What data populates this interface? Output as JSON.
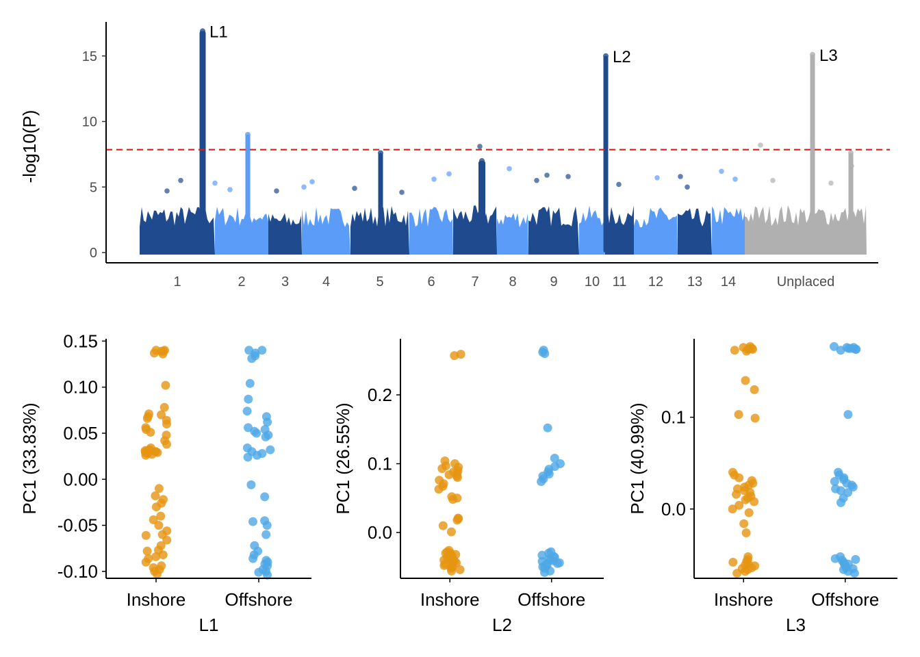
{
  "colors": {
    "dark_blue": "#1f4b8e",
    "light_blue": "#5b9cf8",
    "grey": "#b0b0b0",
    "threshold": "#e31a1c",
    "inshore": "#e69512",
    "offshore": "#4ea8e6"
  },
  "chart_data": [
    {
      "type": "scatter",
      "subtype": "manhattan",
      "ylabel": "-log10(P)",
      "xlabel": "",
      "ylim": [
        0,
        17.5
      ],
      "yticks": [
        "0",
        "5",
        "10",
        "15"
      ],
      "threshold": 7.85,
      "chromosomes": [
        {
          "name": "1",
          "start": 0,
          "end": 110,
          "color": "dark_blue",
          "base_max": 3.6
        },
        {
          "name": "2",
          "start": 110,
          "end": 188,
          "color": "light_blue",
          "base_max": 3.6
        },
        {
          "name": "3",
          "start": 188,
          "end": 237,
          "color": "dark_blue",
          "base_max": 3.1
        },
        {
          "name": "4",
          "start": 237,
          "end": 308,
          "color": "light_blue",
          "base_max": 3.5
        },
        {
          "name": "5",
          "start": 308,
          "end": 394,
          "color": "dark_blue",
          "base_max": 3.6
        },
        {
          "name": "6",
          "start": 394,
          "end": 458,
          "color": "light_blue",
          "base_max": 3.5
        },
        {
          "name": "7",
          "start": 458,
          "end": 522,
          "color": "dark_blue",
          "base_max": 3.6
        },
        {
          "name": "8",
          "start": 522,
          "end": 568,
          "color": "light_blue",
          "base_max": 3.4
        },
        {
          "name": "9",
          "start": 568,
          "end": 642,
          "color": "dark_blue",
          "base_max": 3.6
        },
        {
          "name": "10",
          "start": 642,
          "end": 680,
          "color": "light_blue",
          "base_max": 3.6
        },
        {
          "name": "11",
          "start": 680,
          "end": 722,
          "color": "dark_blue",
          "base_max": 3.6
        },
        {
          "name": "12",
          "start": 722,
          "end": 786,
          "color": "light_blue",
          "base_max": 3.5
        },
        {
          "name": "13",
          "start": 786,
          "end": 836,
          "color": "dark_blue",
          "base_max": 3.4
        },
        {
          "name": "14",
          "start": 836,
          "end": 884,
          "color": "light_blue",
          "base_max": 3.6
        },
        {
          "name": "Unplaced",
          "start": 884,
          "end": 1062,
          "color": "grey",
          "base_max": 3.7
        }
      ],
      "peaks": [
        {
          "x": 92,
          "height": 16.9,
          "color": "dark_blue",
          "width": 5,
          "label": "L1"
        },
        {
          "x": 158,
          "height": 9.0,
          "color": "light_blue",
          "width": 3,
          "label": ""
        },
        {
          "x": 352,
          "height": 7.6,
          "color": "dark_blue",
          "width": 3,
          "label": ""
        },
        {
          "x": 500,
          "height": 7.0,
          "color": "dark_blue",
          "width": 6,
          "label": ""
        },
        {
          "x": 681,
          "height": 15.0,
          "color": "dark_blue",
          "width": 3,
          "label": "L2"
        },
        {
          "x": 983,
          "height": 15.1,
          "color": "grey",
          "width": 3,
          "label": "L3"
        },
        {
          "x": 1039,
          "height": 7.6,
          "color": "grey",
          "width": 3,
          "label": ""
        }
      ],
      "outliers": [
        {
          "x": 40,
          "y": 4.7
        },
        {
          "x": 60,
          "y": 5.5
        },
        {
          "x": 110,
          "y": 5.3
        },
        {
          "x": 132,
          "y": 4.8
        },
        {
          "x": 200,
          "y": 4.7
        },
        {
          "x": 240,
          "y": 5.0
        },
        {
          "x": 252,
          "y": 5.4
        },
        {
          "x": 314,
          "y": 4.9
        },
        {
          "x": 383,
          "y": 4.6
        },
        {
          "x": 430,
          "y": 5.6
        },
        {
          "x": 452,
          "y": 6.0
        },
        {
          "x": 497,
          "y": 8.1
        },
        {
          "x": 540,
          "y": 6.4
        },
        {
          "x": 580,
          "y": 5.5
        },
        {
          "x": 595,
          "y": 5.9
        },
        {
          "x": 626,
          "y": 5.8
        },
        {
          "x": 700,
          "y": 5.2
        },
        {
          "x": 756,
          "y": 5.7
        },
        {
          "x": 790,
          "y": 5.8
        },
        {
          "x": 800,
          "y": 5.0
        },
        {
          "x": 850,
          "y": 6.2
        },
        {
          "x": 870,
          "y": 5.6
        },
        {
          "x": 907,
          "y": 8.2
        },
        {
          "x": 925,
          "y": 5.5
        },
        {
          "x": 1010,
          "y": 5.3
        },
        {
          "x": 1040,
          "y": 6.6
        }
      ]
    },
    {
      "type": "scatter",
      "subtype": "jitter",
      "title": "",
      "xlabel": "L1",
      "ylabel": "PC1 (33.83%)",
      "categories": [
        "Inshore",
        "Offshore"
      ],
      "ylim": [
        -0.1075,
        0.1525
      ],
      "yticks": [
        "0.15",
        "0.10",
        "0.05",
        "0.00",
        "-0.05",
        "-0.10"
      ],
      "series": [
        {
          "name": "Inshore",
          "color": "inshore",
          "values": [
            0.14,
            0.139,
            0.137,
            0.14,
            0.136,
            0.139,
            0.102,
            0.078,
            0.071,
            0.07,
            0.068,
            0.066,
            0.064,
            0.06,
            0.056,
            0.054,
            0.051,
            0.048,
            0.042,
            0.038,
            0.034,
            0.032,
            0.031,
            0.03,
            0.029,
            0.028,
            0.027,
            0.03,
            0.032,
            0.026,
            0.029,
            0.031,
            -0.01,
            -0.018,
            -0.022,
            -0.026,
            -0.03,
            -0.04,
            -0.044,
            -0.05,
            -0.056,
            -0.06,
            -0.066,
            -0.072,
            -0.077,
            -0.082,
            -0.086,
            -0.09,
            -0.094,
            -0.098,
            -0.1,
            -0.103,
            -0.096,
            -0.084,
            -0.078,
            -0.061
          ]
        },
        {
          "name": "Offshore",
          "color": "offshore",
          "values": [
            0.14,
            0.137,
            0.134,
            0.131,
            0.14,
            0.104,
            0.087,
            0.074,
            0.068,
            0.062,
            0.056,
            0.054,
            0.052,
            0.05,
            0.048,
            0.046,
            0.034,
            0.032,
            0.03,
            0.028,
            0.026,
            0.024,
            -0.006,
            -0.019,
            -0.045,
            -0.046,
            -0.05,
            -0.06,
            -0.072,
            -0.078,
            -0.082,
            -0.086,
            -0.09,
            -0.094,
            -0.098,
            -0.101,
            -0.104,
            -0.088,
            -0.1,
            -0.092
          ]
        }
      ]
    },
    {
      "type": "scatter",
      "subtype": "jitter",
      "title": "",
      "xlabel": "L2",
      "ylabel": "PC1 (26.55%)",
      "categories": [
        "Inshore",
        "Offshore"
      ],
      "ylim": [
        -0.0665,
        0.2815
      ],
      "yticks": [
        "0.2",
        "0.1",
        "0.0"
      ],
      "series": [
        {
          "name": "Inshore",
          "color": "inshore",
          "values": [
            0.259,
            0.257,
            0.104,
            0.1,
            0.097,
            0.095,
            0.093,
            0.09,
            0.088,
            0.086,
            0.084,
            0.082,
            0.08,
            0.076,
            0.071,
            0.067,
            0.063,
            0.052,
            0.05,
            0.048,
            0.021,
            0.02,
            0.018,
            0.01,
            0.001,
            -0.026,
            -0.028,
            -0.03,
            -0.032,
            -0.034,
            -0.036,
            -0.038,
            -0.04,
            -0.042,
            -0.044,
            -0.046,
            -0.048,
            -0.05,
            -0.052,
            -0.054,
            -0.056,
            -0.03,
            -0.035,
            -0.045,
            -0.04,
            -0.05
          ]
        },
        {
          "name": "Offshore",
          "color": "offshore",
          "values": [
            0.265,
            0.26,
            0.262,
            0.152,
            0.108,
            0.1,
            0.096,
            0.092,
            0.088,
            0.085,
            0.082,
            0.078,
            0.074,
            -0.028,
            -0.03,
            -0.033,
            -0.036,
            -0.038,
            -0.04,
            -0.042,
            -0.044,
            -0.046,
            -0.048,
            -0.05,
            -0.052,
            -0.056,
            -0.058,
            -0.035,
            -0.041,
            -0.045
          ]
        }
      ]
    },
    {
      "type": "scatter",
      "subtype": "jitter",
      "title": "",
      "xlabel": "L3",
      "ylabel": "PC1 (40.99%)",
      "categories": [
        "Inshore",
        "Offshore"
      ],
      "ylim": [
        -0.0755,
        0.1855
      ],
      "yticks": [
        "0.1",
        "0.0"
      ],
      "series": [
        {
          "name": "Inshore",
          "color": "inshore",
          "values": [
            0.177,
            0.176,
            0.175,
            0.174,
            0.173,
            0.172,
            0.175,
            0.174,
            0.14,
            0.13,
            0.103,
            0.099,
            0.04,
            0.037,
            0.034,
            0.031,
            0.028,
            0.026,
            0.024,
            0.022,
            0.02,
            0.018,
            0.016,
            0.014,
            0.012,
            0.01,
            0.008,
            0.004,
            0.0,
            -0.004,
            -0.016,
            -0.026,
            -0.052,
            -0.055,
            -0.058,
            -0.06,
            -0.062,
            -0.064,
            -0.066,
            -0.068,
            -0.07,
            -0.057,
            -0.061,
            -0.065
          ]
        },
        {
          "name": "Offshore",
          "color": "offshore",
          "values": [
            0.177,
            0.176,
            0.175,
            0.174,
            0.173,
            0.175,
            0.174,
            0.176,
            0.103,
            0.04,
            0.037,
            0.034,
            0.032,
            0.03,
            0.028,
            0.026,
            0.024,
            0.022,
            0.02,
            0.018,
            0.012,
            0.007,
            -0.052,
            -0.054,
            -0.056,
            -0.058,
            -0.06,
            -0.062,
            -0.064,
            -0.066,
            -0.068,
            -0.07,
            -0.055,
            -0.06,
            -0.065
          ]
        }
      ]
    }
  ]
}
